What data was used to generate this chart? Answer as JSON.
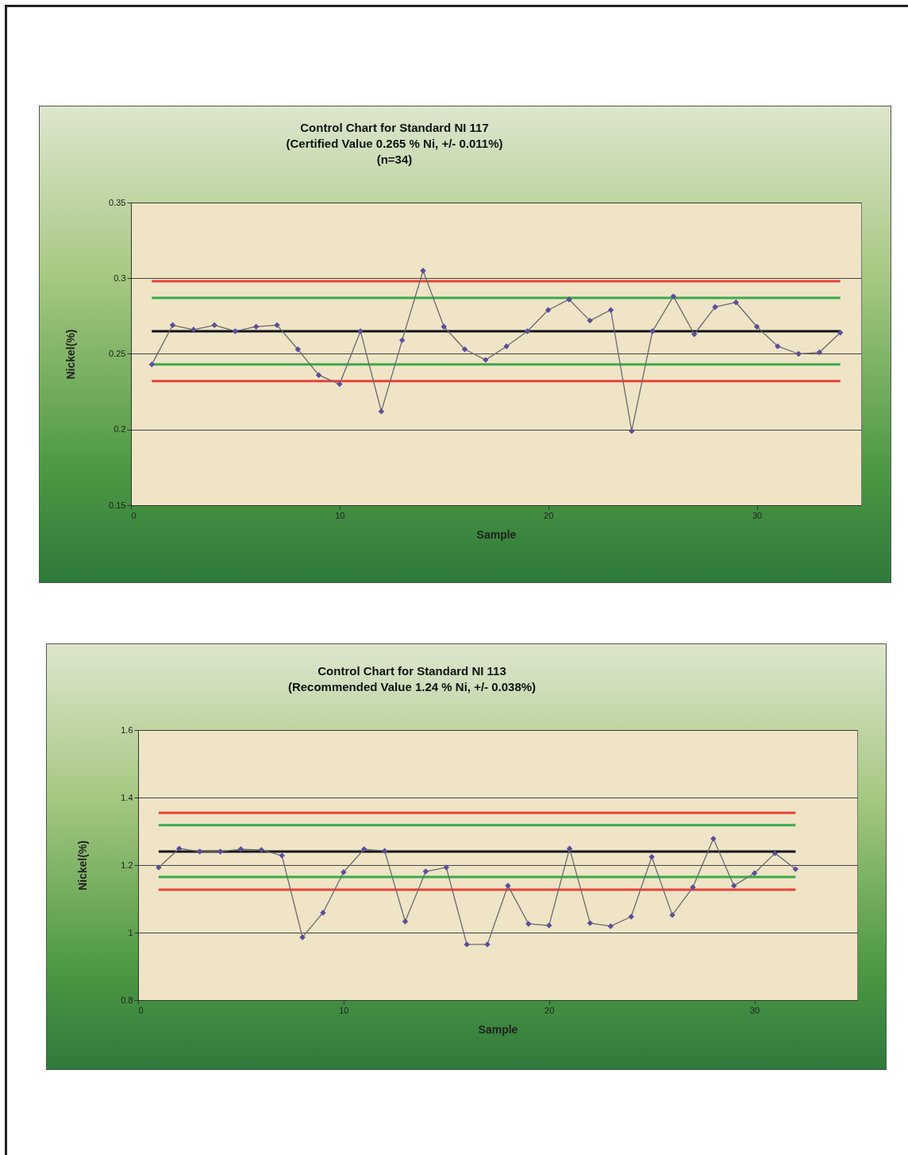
{
  "chart_data": [
    {
      "type": "line",
      "title": "Control Chart for Standard NI 117\n(Certified Value 0.265 % Ni, +/- 0.011%)\n(n=34)",
      "xlabel": "Sample",
      "ylabel": "Nickel(%)",
      "xlim": [
        0,
        35
      ],
      "xticks": [
        0,
        10,
        20,
        30
      ],
      "ylim": [
        0.15,
        0.35
      ],
      "yticks": [
        0.15,
        0.2,
        0.25,
        0.3,
        0.35
      ],
      "grid": "y",
      "series": [
        {
          "type": "line",
          "color": "#e8423a",
          "x": [
            1,
            34
          ],
          "values": [
            0.298,
            0.298
          ],
          "marker": "none"
        },
        {
          "type": "line",
          "color": "#3aaa4a",
          "x": [
            1,
            34
          ],
          "values": [
            0.287,
            0.287
          ],
          "marker": "none"
        },
        {
          "type": "line",
          "color": "#3aaa4a",
          "x": [
            1,
            34
          ],
          "values": [
            0.243,
            0.243
          ],
          "marker": "none"
        },
        {
          "type": "line",
          "color": "#e8423a",
          "x": [
            1,
            34
          ],
          "values": [
            0.232,
            0.232
          ],
          "marker": "none"
        },
        {
          "type": "line",
          "color": "#111111",
          "x": [
            1,
            34
          ],
          "values": [
            0.265,
            0.265
          ],
          "marker": "none"
        },
        {
          "type": "line",
          "color": "#5b4d9c",
          "marker": "diamond",
          "x": [
            1,
            2,
            3,
            4,
            5,
            6,
            7,
            8,
            9,
            10,
            11,
            12,
            13,
            14,
            15,
            16,
            17,
            18,
            19,
            20,
            21,
            22,
            23,
            24,
            25,
            26,
            27,
            28,
            29,
            30,
            31,
            32,
            33,
            34
          ],
          "values": [
            0.243,
            0.269,
            0.266,
            0.269,
            0.265,
            0.268,
            0.269,
            0.253,
            0.236,
            0.23,
            0.265,
            0.212,
            0.259,
            0.305,
            0.268,
            0.253,
            0.246,
            0.255,
            0.265,
            0.279,
            0.286,
            0.272,
            0.279,
            0.199,
            0.265,
            0.288,
            0.263,
            0.281,
            0.284,
            0.268,
            0.255,
            0.25,
            0.251,
            0.264
          ]
        }
      ]
    },
    {
      "type": "line",
      "title": "Control Chart for Standard NI 113\n(Recommended Value 1.24 % Ni, +/- 0.038%)",
      "xlabel": "Sample",
      "ylabel": "Nickel(%)",
      "xlim": [
        0,
        35
      ],
      "xticks": [
        0,
        10,
        20,
        30
      ],
      "ylim": [
        0.8,
        1.6
      ],
      "yticks": [
        0.8,
        1,
        1.2,
        1.4,
        1.6
      ],
      "grid": "y",
      "series": [
        {
          "type": "line",
          "color": "#e8423a",
          "x": [
            1,
            32
          ],
          "values": [
            1.355,
            1.355
          ],
          "marker": "none"
        },
        {
          "type": "line",
          "color": "#3aaa4a",
          "x": [
            1,
            32
          ],
          "values": [
            1.318,
            1.318
          ],
          "marker": "none"
        },
        {
          "type": "line",
          "color": "#3aaa4a",
          "x": [
            1,
            32
          ],
          "values": [
            1.165,
            1.165
          ],
          "marker": "none"
        },
        {
          "type": "line",
          "color": "#e8423a",
          "x": [
            1,
            32
          ],
          "values": [
            1.127,
            1.127
          ],
          "marker": "none"
        },
        {
          "type": "line",
          "color": "#111111",
          "x": [
            1,
            32
          ],
          "values": [
            1.24,
            1.24
          ],
          "marker": "none"
        },
        {
          "type": "line",
          "color": "#5b4d9c",
          "marker": "diamond",
          "x": [
            1,
            2,
            3,
            4,
            5,
            6,
            7,
            8,
            9,
            10,
            11,
            12,
            13,
            14,
            15,
            16,
            17,
            18,
            19,
            20,
            21,
            22,
            23,
            24,
            25,
            26,
            27,
            28,
            29,
            30,
            31,
            32
          ],
          "values": [
            1.193,
            1.249,
            1.24,
            1.24,
            1.247,
            1.245,
            1.228,
            0.986,
            1.059,
            1.179,
            1.247,
            1.242,
            1.033,
            1.181,
            1.193,
            0.965,
            0.965,
            1.139,
            1.026,
            1.021,
            1.249,
            1.028,
            1.019,
            1.047,
            1.224,
            1.052,
            1.134,
            1.278,
            1.139,
            1.176,
            1.235,
            1.188
          ]
        }
      ]
    }
  ]
}
